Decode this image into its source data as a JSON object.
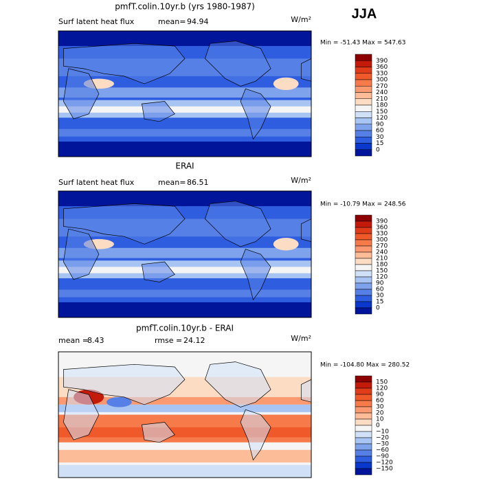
{
  "season": "JJA",
  "panels": [
    {
      "title": "pmfT.colin.10yr.b (yrs 1980-1987)",
      "header_left": "Surf latent heat flux",
      "stats": [
        {
          "label": "mean=",
          "value": "94.94"
        }
      ],
      "units": "W/m²",
      "range": "Min = -51.43 Max = 547.63",
      "map_style": "absolute",
      "colorbar": {
        "labels": [
          "390",
          "360",
          "330",
          "300",
          "270",
          "240",
          "210",
          "180",
          "150",
          "120",
          "90",
          "60",
          "30",
          "15",
          "0"
        ],
        "colors": [
          "#8c0000",
          "#c41a0a",
          "#e03c1a",
          "#f05a2a",
          "#f77a4a",
          "#fb9a70",
          "#fdbc98",
          "#fddcc4",
          "#f5f5f5",
          "#cfe0f7",
          "#a7c4f2",
          "#7ea3ec",
          "#5680e6",
          "#2e5de0",
          "#0a37cc",
          "#00159a"
        ]
      }
    },
    {
      "title": "ERAI",
      "header_left": "Surf latent heat flux",
      "stats": [
        {
          "label": "mean=",
          "value": "86.51"
        }
      ],
      "units": "W/m²",
      "range": "Min = -10.79 Max = 248.56",
      "map_style": "absolute",
      "colorbar": {
        "labels": [
          "390",
          "360",
          "330",
          "300",
          "270",
          "240",
          "210",
          "180",
          "150",
          "120",
          "90",
          "60",
          "30",
          "15",
          "0"
        ],
        "colors": [
          "#8c0000",
          "#c41a0a",
          "#e03c1a",
          "#f05a2a",
          "#f77a4a",
          "#fb9a70",
          "#fdbc98",
          "#fddcc4",
          "#f5f5f5",
          "#cfe0f7",
          "#a7c4f2",
          "#7ea3ec",
          "#5680e6",
          "#2e5de0",
          "#0a37cc",
          "#00159a"
        ]
      }
    },
    {
      "title": "pmfT.colin.10yr.b - ERAI",
      "header_left": null,
      "stats": [
        {
          "label": "mean =",
          "value": "8.43"
        },
        {
          "label": "rmse =",
          "value": "24.12"
        }
      ],
      "units": "W/m²",
      "range": "Min = -104.80 Max = 280.52",
      "map_style": "difference",
      "colorbar": {
        "labels": [
          "150",
          "120",
          "90",
          "60",
          "30",
          "20",
          "10",
          "0",
          "−10",
          "−20",
          "−30",
          "−60",
          "−90",
          "−120",
          "−150"
        ],
        "colors": [
          "#8c0000",
          "#c41a0a",
          "#e03c1a",
          "#f05a2a",
          "#f77a4a",
          "#fb9a70",
          "#fdbc98",
          "#fddcc4",
          "#f5f5f5",
          "#cfe0f7",
          "#a7c4f2",
          "#7ea3ec",
          "#5680e6",
          "#2e5de0",
          "#0a37cc",
          "#00159a"
        ]
      }
    }
  ]
}
